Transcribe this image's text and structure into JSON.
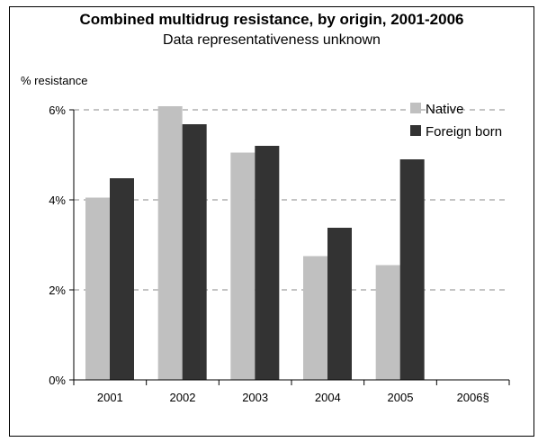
{
  "chart_data": {
    "type": "bar",
    "title": "Combined multidrug resistance, by origin, 2001-2006",
    "subtitle": "Data representativeness unknown",
    "ylabel": "% resistance",
    "xlabel": "",
    "categories": [
      "2001",
      "2002",
      "2003",
      "2004",
      "2005",
      "2006§"
    ],
    "series": [
      {
        "name": "Native",
        "color": "#c0c0c0",
        "values": [
          4.05,
          6.08,
          5.05,
          2.75,
          2.55,
          null
        ]
      },
      {
        "name": "Foreign born",
        "color": "#333333",
        "values": [
          4.48,
          5.68,
          5.2,
          3.38,
          4.9,
          null
        ]
      }
    ],
    "ylim": [
      0,
      6
    ],
    "yticks": [
      0,
      2,
      4,
      6
    ],
    "ytick_labels": [
      "0%",
      "2%",
      "4%",
      "6%"
    ],
    "grid": "dashed horizontal",
    "legend_position": "top-right"
  }
}
